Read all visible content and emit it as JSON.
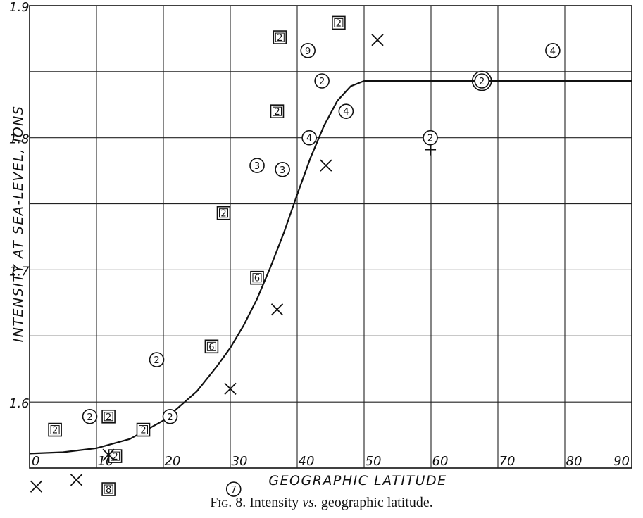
{
  "chart_data": {
    "type": "scatter",
    "title": "",
    "caption": {
      "fig_label": "Fig. 8.",
      "text": "Intensity",
      "vs": "vs.",
      "rest": "geographic latitude."
    },
    "xlabel": "GEOGRAPHIC LATITUDE",
    "ylabel": "INTENSITY AT SEA-LEVEL, IONS",
    "xlim": [
      0,
      90
    ],
    "ylim": [
      1.55,
      1.9
    ],
    "grid": true,
    "x_ticks": [
      0,
      10,
      20,
      30,
      40,
      50,
      60,
      70,
      80,
      90
    ],
    "x_tick_labels": [
      "0",
      "10",
      "20",
      "30",
      "40",
      "50",
      "60",
      "70",
      "80",
      "90"
    ],
    "y_ticks": [
      1.6,
      1.7,
      1.8,
      1.9
    ],
    "y_tick_labels": [
      "1.6",
      "1.7",
      "1.8",
      "1.9"
    ],
    "series": [
      {
        "marker": "square",
        "points": [
          {
            "x": 3.8,
            "y": 1.579,
            "label": "2"
          },
          {
            "x": 11.8,
            "y": 1.589,
            "label": "2"
          },
          {
            "x": 12.8,
            "y": 1.559,
            "label": "2"
          },
          {
            "x": 11.8,
            "y": 1.534,
            "label": "8"
          },
          {
            "x": 17,
            "y": 1.579,
            "label": "2"
          },
          {
            "x": 27.2,
            "y": 1.642,
            "label": "6"
          },
          {
            "x": 29,
            "y": 1.743,
            "label": "2"
          },
          {
            "x": 34,
            "y": 1.694,
            "label": "6"
          },
          {
            "x": 37,
            "y": 1.82,
            "label": "2"
          },
          {
            "x": 37.4,
            "y": 1.876,
            "label": "2"
          },
          {
            "x": 46.2,
            "y": 1.887,
            "label": "2"
          }
        ]
      },
      {
        "marker": "circle",
        "points": [
          {
            "x": 9,
            "y": 1.589,
            "label": "2"
          },
          {
            "x": 19,
            "y": 1.632,
            "label": "2"
          },
          {
            "x": 21,
            "y": 1.589,
            "label": "2"
          },
          {
            "x": 30.5,
            "y": 1.534,
            "label": "7"
          },
          {
            "x": 34,
            "y": 1.779,
            "label": "3"
          },
          {
            "x": 37.8,
            "y": 1.776,
            "label": "3"
          },
          {
            "x": 41.8,
            "y": 1.8,
            "label": "4"
          },
          {
            "x": 41.6,
            "y": 1.866,
            "label": "9"
          },
          {
            "x": 43.7,
            "y": 1.843,
            "label": "2"
          },
          {
            "x": 47.3,
            "y": 1.82,
            "label": "4"
          },
          {
            "x": 59.9,
            "y": 1.8,
            "label": "2"
          },
          {
            "x": 67.6,
            "y": 1.843,
            "label": "2",
            "double_ring": true
          },
          {
            "x": 78.2,
            "y": 1.866,
            "label": "4"
          }
        ]
      },
      {
        "marker": "x",
        "points": [
          {
            "x": 1,
            "y": 1.536
          },
          {
            "x": 7,
            "y": 1.541
          },
          {
            "x": 11.8,
            "y": 1.56
          },
          {
            "x": 30,
            "y": 1.61
          },
          {
            "x": 37,
            "y": 1.67
          },
          {
            "x": 44.3,
            "y": 1.779
          },
          {
            "x": 52,
            "y": 1.874
          }
        ]
      },
      {
        "marker": "plus",
        "points": [
          {
            "x": 59.9,
            "y": 1.791
          }
        ]
      }
    ],
    "curve": {
      "x": [
        0,
        5,
        10,
        15,
        20,
        25,
        28,
        30,
        32,
        34,
        36,
        38,
        40,
        42,
        44,
        46,
        48,
        50,
        55,
        60,
        70,
        80,
        90
      ],
      "y": [
        1.561,
        1.562,
        1.565,
        1.572,
        1.586,
        1.608,
        1.627,
        1.641,
        1.658,
        1.678,
        1.702,
        1.728,
        1.757,
        1.785,
        1.809,
        1.828,
        1.839,
        1.843,
        1.843,
        1.843,
        1.843,
        1.843,
        1.843
      ]
    }
  }
}
